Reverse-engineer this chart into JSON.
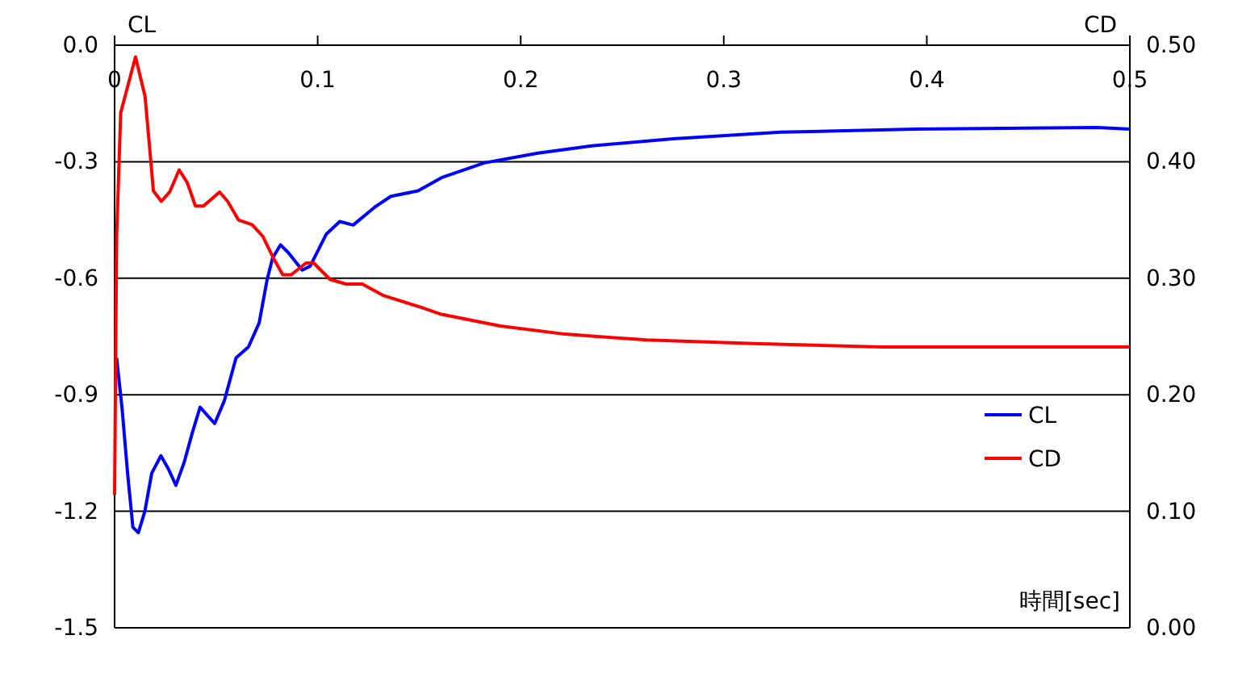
{
  "chart_data": {
    "type": "line",
    "xlabel": "時間[sec]",
    "ylabel": "CL",
    "y2label": "CD",
    "xlim": [
      0,
      0.5
    ],
    "xticks": [
      0,
      0.1,
      0.2,
      0.3,
      0.4,
      0.5
    ],
    "ylim": [
      -1.5,
      0
    ],
    "yticks": [
      {
        "value": -1.5,
        "label": "-1.5"
      },
      {
        "value": -1.2,
        "label": "-1.2"
      },
      {
        "value": -0.9,
        "label": "-0.9"
      },
      {
        "value": -0.6,
        "label": "-0.6"
      },
      {
        "value": -0.3,
        "label": "-0.3"
      },
      {
        "value": 0,
        "label": "0.0"
      }
    ],
    "y2lim": [
      0,
      0.5
    ],
    "y2ticks": [
      {
        "value": 0,
        "label": "0.00"
      },
      {
        "value": 0.1,
        "label": "0.10"
      },
      {
        "value": 0.2,
        "label": "0.20"
      },
      {
        "value": 0.3,
        "label": "0.30"
      },
      {
        "value": 0.4,
        "label": "0.40"
      },
      {
        "value": 0.5,
        "label": "0.50"
      }
    ],
    "grid": "y",
    "legend": "bottom right",
    "marker": "none",
    "line_style": "solid",
    "series": [
      {
        "name": "CL",
        "color": "#0000ff",
        "x": [
          0.001,
          0.0037,
          0.0064,
          0.009,
          0.0117,
          0.0149,
          0.0183,
          0.0228,
          0.0263,
          0.0302,
          0.0342,
          0.0382,
          0.0421,
          0.0493,
          0.054,
          0.0598,
          0.0659,
          0.0712,
          0.0751,
          0.0778,
          0.0817,
          0.0857,
          0.0924,
          0.0963,
          0.1043,
          0.1109,
          0.1175,
          0.1281,
          0.1361,
          0.1494,
          0.161,
          0.182,
          0.2085,
          0.235,
          0.275,
          0.328,
          0.394,
          0.484,
          0.5
        ],
        "values": [
          -0.805,
          -0.936,
          -1.102,
          -1.241,
          -1.255,
          -1.2,
          -1.102,
          -1.057,
          -1.089,
          -1.133,
          -1.075,
          -0.999,
          -0.932,
          -0.974,
          -0.916,
          -0.805,
          -0.777,
          -0.715,
          -0.604,
          -0.548,
          -0.514,
          -0.535,
          -0.579,
          -0.569,
          -0.486,
          -0.454,
          -0.463,
          -0.417,
          -0.389,
          -0.375,
          -0.341,
          -0.303,
          -0.278,
          -0.259,
          -0.241,
          -0.224,
          -0.216,
          -0.212,
          -0.216
        ]
      },
      {
        "name": "CD",
        "color": "#ff0000",
        "axis": "y2",
        "x": [
          0,
          0.001,
          0.003,
          0.0103,
          0.015,
          0.0176,
          0.0191,
          0.023,
          0.0271,
          0.0318,
          0.0358,
          0.0398,
          0.0438,
          0.0517,
          0.0557,
          0.061,
          0.0677,
          0.073,
          0.0783,
          0.0828,
          0.087,
          0.0942,
          0.0981,
          0.1061,
          0.114,
          0.122,
          0.1326,
          0.151,
          0.161,
          0.19,
          0.222,
          0.262,
          0.315,
          0.378,
          0.5
        ],
        "values": [
          0.114,
          0.336,
          0.442,
          0.49,
          0.456,
          0.405,
          0.375,
          0.366,
          0.374,
          0.393,
          0.382,
          0.362,
          0.362,
          0.374,
          0.366,
          0.35,
          0.346,
          0.336,
          0.317,
          0.303,
          0.303,
          0.313,
          0.313,
          0.299,
          0.295,
          0.295,
          0.285,
          0.275,
          0.269,
          0.259,
          0.252,
          0.247,
          0.244,
          0.241,
          0.241
        ]
      }
    ]
  }
}
